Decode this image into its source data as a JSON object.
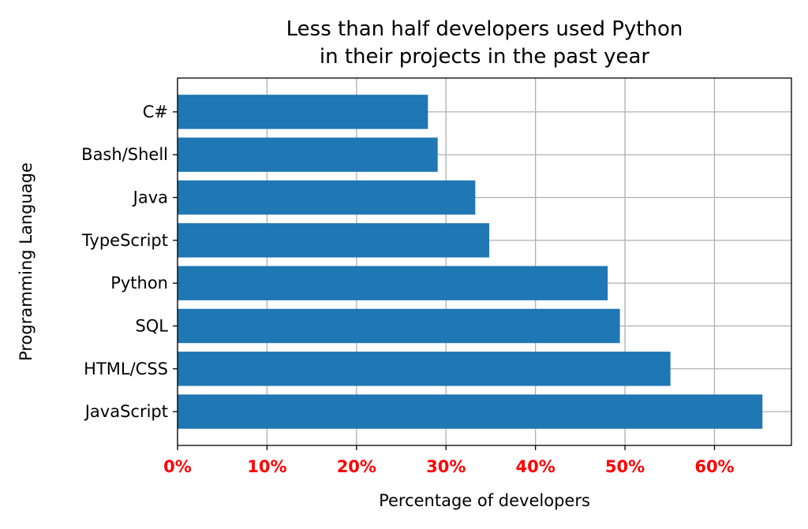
{
  "chart_data": {
    "type": "bar",
    "orientation": "horizontal",
    "title_lines": [
      "Less than half developers used Python",
      "in their projects in the past year"
    ],
    "xlabel": "Percentage of developers",
    "ylabel": "Programming Language",
    "categories": [
      "JavaScript",
      "HTML/CSS",
      "SQL",
      "Python",
      "TypeScript",
      "Java",
      "Bash/Shell",
      "C#"
    ],
    "values": [
      65.36,
      55.08,
      49.43,
      48.07,
      34.83,
      33.27,
      29.07,
      27.98
    ],
    "xlim": [
      0,
      68.6
    ],
    "xticks": [
      0,
      10,
      20,
      30,
      40,
      50,
      60
    ],
    "xtick_labels": [
      "0%",
      "10%",
      "20%",
      "30%",
      "40%",
      "50%",
      "60%"
    ],
    "xtick_color": "#ff0000",
    "bar_color": "#1f77b4",
    "grid": true
  }
}
